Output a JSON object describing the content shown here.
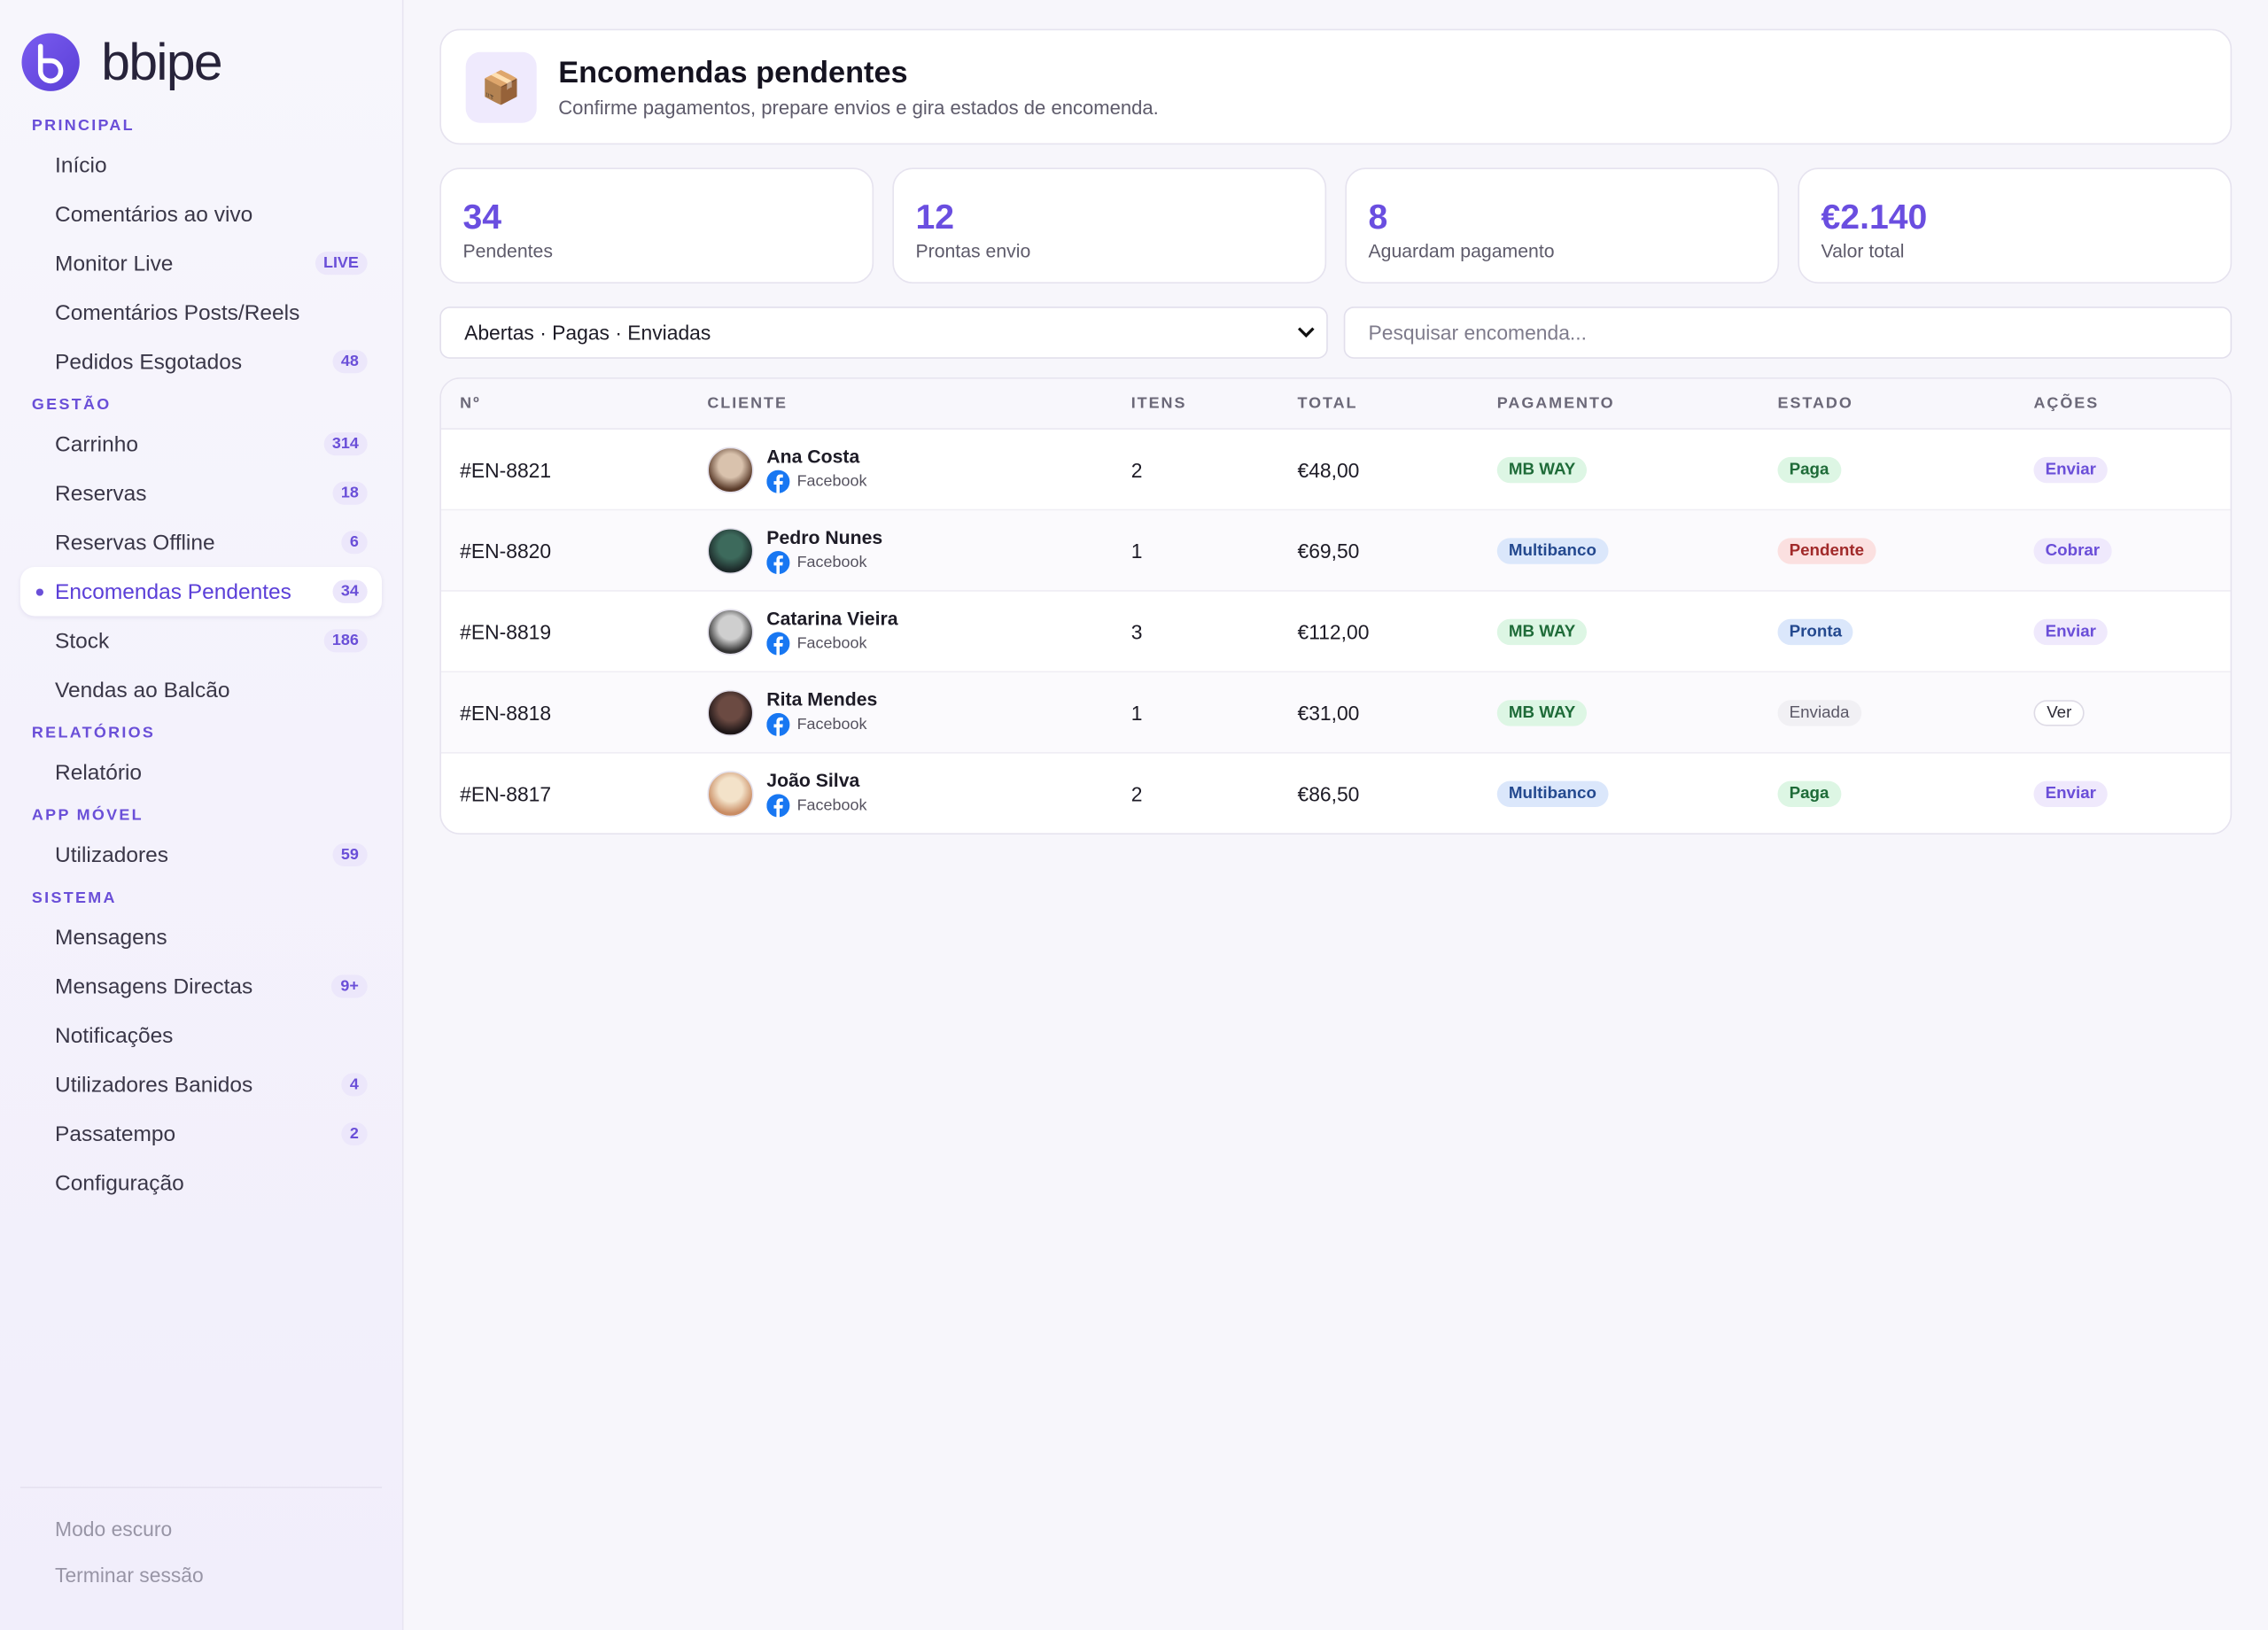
{
  "brand": "bbipe",
  "sidebar": {
    "sections": [
      {
        "title": "PRINCIPAL",
        "items": [
          {
            "label": "Início"
          },
          {
            "label": "Comentários ao vivo"
          },
          {
            "label": "Monitor Live",
            "badge": "LIVE"
          },
          {
            "label": "Comentários Posts/Reels"
          },
          {
            "label": "Pedidos Esgotados",
            "badge": 48
          }
        ]
      },
      {
        "title": "GESTÃO",
        "items": [
          {
            "label": "Carrinho",
            "badge": 314
          },
          {
            "label": "Reservas",
            "badge": 18
          },
          {
            "label": "Reservas Offline",
            "badge": 6
          },
          {
            "label": "Encomendas Pendentes",
            "badge": 34,
            "active": true
          },
          {
            "label": "Stock",
            "badge": 186
          },
          {
            "label": "Vendas ao Balcão"
          }
        ]
      },
      {
        "title": "RELATÓRIOS",
        "items": [
          {
            "label": "Relatório"
          }
        ]
      },
      {
        "title": "APP MÓVEL",
        "items": [
          {
            "label": "Utilizadores",
            "badge": 59
          }
        ]
      },
      {
        "title": "SISTEMA",
        "items": [
          {
            "label": "Mensagens"
          },
          {
            "label": "Mensagens Directas",
            "badge": "9+"
          },
          {
            "label": "Notificações"
          },
          {
            "label": "Utilizadores Banidos",
            "badge": 4
          },
          {
            "label": "Passatempo",
            "badge": 2
          },
          {
            "label": "Configuração"
          }
        ]
      }
    ],
    "footer": [
      "Modo escuro",
      "Terminar sessão"
    ]
  },
  "header": {
    "icon": "📦",
    "title": "Encomendas pendentes",
    "subtitle": "Confirme pagamentos, prepare envios e gira estados de encomenda."
  },
  "stats": [
    {
      "value": 34,
      "label": "Pendentes"
    },
    {
      "value": 12,
      "label": "Prontas envio"
    },
    {
      "value": 8,
      "label": "Aguardam pagamento"
    },
    {
      "value": "€2.140",
      "label": "Valor total"
    }
  ],
  "filters": {
    "select": "Abertas · Pagas · Enviadas",
    "search_placeholder": "Pesquisar encomenda..."
  },
  "table": {
    "columns": [
      "Nº",
      "CLIENTE",
      "ITENS",
      "TOTAL",
      "PAGAMENTO",
      "ESTADO",
      "AÇÕES"
    ],
    "rows": [
      {
        "id": "#EN-8821",
        "name": "Ana Costa",
        "source": "Facebook",
        "items": 2,
        "total": "€48,00",
        "payment": "MB WAY",
        "payment_tone": "green",
        "status": "Paga",
        "status_tone": "green",
        "action": "Enviar",
        "action_tone": "purple"
      },
      {
        "id": "#EN-8820",
        "name": "Pedro Nunes",
        "source": "Facebook",
        "items": 1,
        "total": "€69,50",
        "payment": "Multibanco",
        "payment_tone": "blue",
        "status": "Pendente",
        "status_tone": "red",
        "action": "Cobrar",
        "action_tone": "purple"
      },
      {
        "id": "#EN-8819",
        "name": "Catarina Vieira",
        "source": "Facebook",
        "items": 3,
        "total": "€112,00",
        "payment": "MB WAY",
        "payment_tone": "green",
        "status": "Pronta",
        "status_tone": "blue",
        "action": "Enviar",
        "action_tone": "purple"
      },
      {
        "id": "#EN-8818",
        "name": "Rita Mendes",
        "source": "Facebook",
        "items": 1,
        "total": "€31,00",
        "payment": "MB WAY",
        "payment_tone": "green",
        "status": "Enviada",
        "status_tone": "gray",
        "action": "Ver",
        "action_tone": "white"
      },
      {
        "id": "#EN-8817",
        "name": "João Silva",
        "source": "Facebook",
        "items": 2,
        "total": "€86,50",
        "payment": "Multibanco",
        "payment_tone": "blue",
        "status": "Paga",
        "status_tone": "green",
        "action": "Enviar",
        "action_tone": "purple"
      }
    ]
  }
}
